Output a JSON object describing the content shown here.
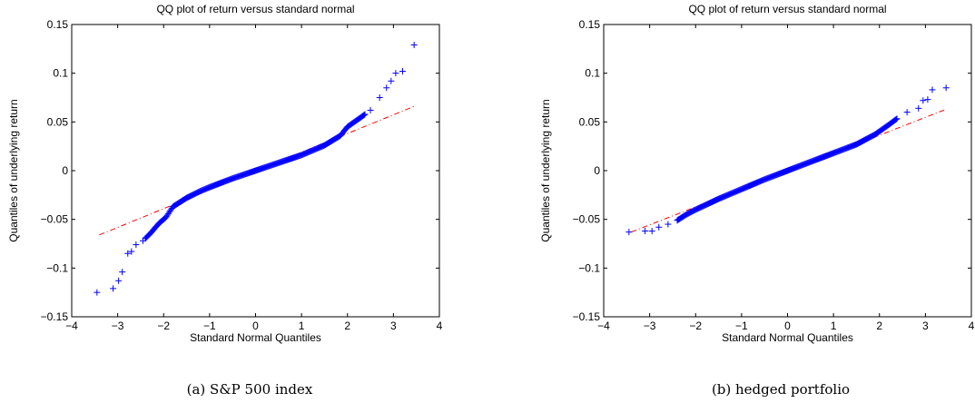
{
  "chart_data": [
    {
      "type": "scatter",
      "title": "QQ plot of return versus standard normal",
      "xlabel": "Standard Normal Quantiles",
      "ylabel": "Quantiles of underlying return",
      "xlim": [
        -4,
        4
      ],
      "ylim": [
        -0.15,
        0.15
      ],
      "xticks": [
        "−4",
        "−3",
        "−2",
        "−1",
        "0",
        "1",
        "2",
        "3",
        "4"
      ],
      "yticks": [
        "−0.15",
        "−0.1",
        "−0.05",
        "0",
        "0.05",
        "0.1",
        "0.15"
      ],
      "marker": "+",
      "marker_color": "#0000ff",
      "reference_line": {
        "x": [
          -3.4,
          3.45
        ],
        "y": [
          -0.066,
          0.066
        ],
        "color": "#ff0000",
        "style": "dash-dot"
      },
      "quantile_curve": [
        [
          -3.45,
          -0.125
        ],
        [
          -3.1,
          -0.121
        ],
        [
          -2.98,
          -0.113
        ],
        [
          -2.9,
          -0.104
        ],
        [
          -2.78,
          -0.085
        ],
        [
          -2.7,
          -0.083
        ],
        [
          -2.6,
          -0.076
        ],
        [
          -2.45,
          -0.072
        ],
        [
          -2.3,
          -0.065
        ],
        [
          -2.1,
          -0.054
        ],
        [
          -1.95,
          -0.048
        ],
        [
          -1.8,
          -0.037
        ],
        [
          -1.5,
          -0.028
        ],
        [
          -1.2,
          -0.021
        ],
        [
          -1.0,
          -0.017
        ],
        [
          -0.5,
          -0.008
        ],
        [
          0,
          0.0
        ],
        [
          0.5,
          0.008
        ],
        [
          1.0,
          0.016
        ],
        [
          1.5,
          0.026
        ],
        [
          1.85,
          0.036
        ],
        [
          2.0,
          0.045
        ],
        [
          2.15,
          0.05
        ],
        [
          2.3,
          0.055
        ],
        [
          2.5,
          0.062
        ],
        [
          2.7,
          0.075
        ],
        [
          2.85,
          0.085
        ],
        [
          2.95,
          0.092
        ],
        [
          3.05,
          0.1
        ],
        [
          3.2,
          0.102
        ],
        [
          3.45,
          0.129
        ]
      ]
    },
    {
      "type": "scatter",
      "title": "QQ plot of return versus standard normal",
      "xlabel": "Standard Normal Quantiles",
      "ylabel": "Quantiles of underlying return",
      "xlim": [
        -4,
        4
      ],
      "ylim": [
        -0.15,
        0.15
      ],
      "xticks": [
        "−4",
        "−3",
        "−2",
        "−1",
        "0",
        "1",
        "2",
        "3",
        "4"
      ],
      "yticks": [
        "−0.15",
        "−0.1",
        "−0.05",
        "0",
        "0.05",
        "0.1",
        "0.15"
      ],
      "marker": "+",
      "marker_color": "#0000ff",
      "reference_line": {
        "x": [
          -3.4,
          3.45
        ],
        "y": [
          -0.063,
          0.063
        ],
        "color": "#ff0000",
        "style": "dash-dot"
      },
      "quantile_curve": [
        [
          -3.45,
          -0.063
        ],
        [
          -3.1,
          -0.062
        ],
        [
          -2.95,
          -0.062
        ],
        [
          -2.8,
          -0.058
        ],
        [
          -2.6,
          -0.055
        ],
        [
          -2.4,
          -0.051
        ],
        [
          -2.2,
          -0.045
        ],
        [
          -2.0,
          -0.04
        ],
        [
          -1.5,
          -0.029
        ],
        [
          -1.0,
          -0.019
        ],
        [
          -0.5,
          -0.009
        ],
        [
          0,
          0.0
        ],
        [
          0.5,
          0.009
        ],
        [
          1.0,
          0.018
        ],
        [
          1.5,
          0.027
        ],
        [
          1.9,
          0.037
        ],
        [
          2.05,
          0.042
        ],
        [
          2.2,
          0.047
        ],
        [
          2.4,
          0.054
        ],
        [
          2.6,
          0.06
        ],
        [
          2.85,
          0.064
        ],
        [
          2.95,
          0.072
        ],
        [
          3.05,
          0.073
        ],
        [
          3.15,
          0.083
        ],
        [
          3.45,
          0.085
        ]
      ]
    }
  ],
  "captions": [
    "(a) S&P 500 index",
    "(b) hedged portfolio"
  ]
}
